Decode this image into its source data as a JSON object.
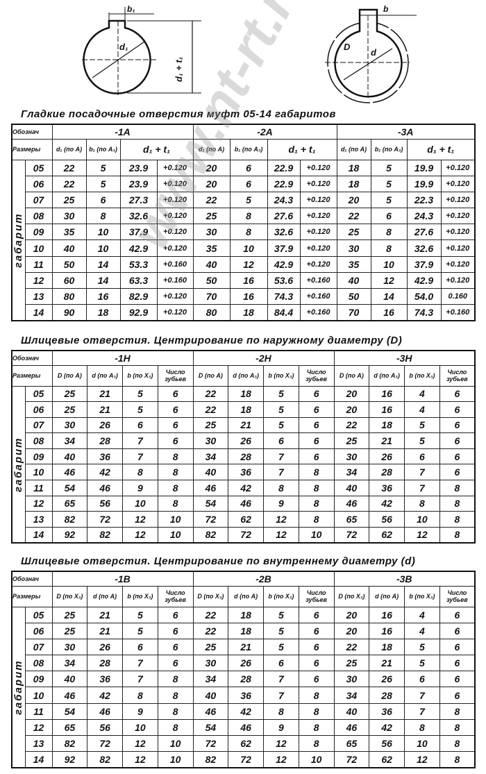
{
  "drawings": {
    "left_labels": {
      "key_width": "b₁",
      "diameter": "d₁",
      "height": "d₁ + t₁"
    },
    "right_labels": {
      "key_width": "b",
      "outer": "D",
      "inner": "d"
    }
  },
  "common": {
    "designation": "Обознач",
    "sizes": "Размеры",
    "gabarit": "габарит"
  },
  "row_sizes": [
    "05",
    "06",
    "07",
    "08",
    "09",
    "10",
    "11",
    "12",
    "13",
    "14"
  ],
  "tables": [
    {
      "title": "Гладкие посадочные отверстия муфт 05-14 габаритов",
      "groups": [
        "-1A",
        "-2A",
        "-3A"
      ],
      "subheaders": [
        "d₁ (по A)",
        "b₁ (по A₃)",
        "d₁ + t₁"
      ],
      "rows": [
        [
          "22",
          "5",
          "23.9",
          "+0.120",
          "20",
          "6",
          "22.9",
          "+0.120",
          "18",
          "5",
          "19.9",
          "+0.120"
        ],
        [
          "22",
          "5",
          "23.9",
          "+0.120",
          "20",
          "6",
          "22.9",
          "+0.120",
          "18",
          "5",
          "19.9",
          "+0.120"
        ],
        [
          "25",
          "6",
          "27.3",
          "+0.120",
          "22",
          "5",
          "24.3",
          "+0.120",
          "20",
          "5",
          "22.3",
          "+0.120"
        ],
        [
          "30",
          "8",
          "32.6",
          "+0.120",
          "25",
          "8",
          "27.6",
          "+0.120",
          "22",
          "6",
          "24.3",
          "+0.120"
        ],
        [
          "35",
          "10",
          "37.9",
          "+0.120",
          "30",
          "8",
          "32.6",
          "+0.120",
          "25",
          "8",
          "27.6",
          "+0.120"
        ],
        [
          "40",
          "10",
          "42.9",
          "+0.120",
          "35",
          "10",
          "37.9",
          "+0.120",
          "30",
          "8",
          "32.6",
          "+0.120"
        ],
        [
          "50",
          "14",
          "53.3",
          "+0.160",
          "40",
          "12",
          "42.9",
          "+0.120",
          "35",
          "10",
          "37.9",
          "+0.120"
        ],
        [
          "60",
          "14",
          "63.3",
          "+0.160",
          "50",
          "16",
          "53.6",
          "+0.160",
          "40",
          "12",
          "42.9",
          "+0.120"
        ],
        [
          "80",
          "16",
          "82.9",
          "+0.120",
          "70",
          "16",
          "74.3",
          "+0.160",
          "50",
          "14",
          "54.0",
          "0.160"
        ],
        [
          "90",
          "18",
          "92.9",
          "+0.120",
          "80",
          "18",
          "84.4",
          "+0.160",
          "70",
          "16",
          "74.3",
          "+0.160"
        ]
      ]
    },
    {
      "title": "Шлицевые отверстия. Центрирование по наружному диаметру (D)",
      "groups": [
        "-1H",
        "-2H",
        "-3H"
      ],
      "subheaders": [
        "D (по A)",
        "d (по A₃)",
        "b (по X₃)",
        "Число зубьев"
      ],
      "rows": [
        [
          "25",
          "21",
          "5",
          "6",
          "22",
          "18",
          "5",
          "6",
          "20",
          "16",
          "4",
          "6"
        ],
        [
          "25",
          "21",
          "5",
          "6",
          "22",
          "18",
          "5",
          "6",
          "20",
          "16",
          "4",
          "6"
        ],
        [
          "30",
          "26",
          "6",
          "6",
          "25",
          "21",
          "5",
          "6",
          "22",
          "18",
          "5",
          "6"
        ],
        [
          "34",
          "28",
          "7",
          "6",
          "30",
          "26",
          "6",
          "6",
          "25",
          "21",
          "5",
          "6"
        ],
        [
          "40",
          "36",
          "7",
          "8",
          "34",
          "28",
          "7",
          "6",
          "30",
          "26",
          "6",
          "6"
        ],
        [
          "46",
          "42",
          "8",
          "8",
          "40",
          "36",
          "7",
          "8",
          "34",
          "28",
          "7",
          "6"
        ],
        [
          "54",
          "46",
          "9",
          "8",
          "46",
          "42",
          "8",
          "8",
          "40",
          "36",
          "7",
          "8"
        ],
        [
          "65",
          "56",
          "10",
          "8",
          "54",
          "46",
          "9",
          "8",
          "46",
          "42",
          "8",
          "8"
        ],
        [
          "82",
          "72",
          "12",
          "10",
          "72",
          "62",
          "12",
          "8",
          "65",
          "56",
          "10",
          "8"
        ],
        [
          "92",
          "82",
          "12",
          "10",
          "82",
          "72",
          "12",
          "10",
          "72",
          "62",
          "12",
          "8"
        ]
      ]
    },
    {
      "title": "Шлицевые отверстия. Центрирование по внутреннему диаметру (d)",
      "groups": [
        "-1B",
        "-2B",
        "-3B"
      ],
      "subheaders": [
        "D (по X₃)",
        "d (по A)",
        "b (по X₃)",
        "Число зубьев"
      ],
      "rows": [
        [
          "25",
          "21",
          "5",
          "6",
          "22",
          "18",
          "5",
          "6",
          "20",
          "16",
          "4",
          "6"
        ],
        [
          "25",
          "21",
          "5",
          "6",
          "22",
          "18",
          "5",
          "6",
          "20",
          "16",
          "4",
          "6"
        ],
        [
          "30",
          "26",
          "6",
          "6",
          "25",
          "21",
          "5",
          "6",
          "22",
          "18",
          "5",
          "6"
        ],
        [
          "34",
          "28",
          "7",
          "6",
          "30",
          "26",
          "6",
          "6",
          "25",
          "21",
          "5",
          "6"
        ],
        [
          "40",
          "36",
          "7",
          "8",
          "34",
          "28",
          "7",
          "6",
          "30",
          "26",
          "6",
          "6"
        ],
        [
          "46",
          "42",
          "8",
          "8",
          "40",
          "36",
          "7",
          "8",
          "34",
          "28",
          "7",
          "6"
        ],
        [
          "54",
          "46",
          "9",
          "8",
          "46",
          "42",
          "8",
          "8",
          "40",
          "36",
          "7",
          "8"
        ],
        [
          "65",
          "56",
          "10",
          "8",
          "54",
          "46",
          "9",
          "8",
          "46",
          "42",
          "8",
          "8"
        ],
        [
          "82",
          "72",
          "12",
          "10",
          "72",
          "62",
          "12",
          "8",
          "65",
          "56",
          "10",
          "8"
        ],
        [
          "92",
          "82",
          "12",
          "10",
          "82",
          "72",
          "12",
          "10",
          "72",
          "62",
          "12",
          "8"
        ]
      ]
    }
  ],
  "watermark": "www.nt-rt.ru"
}
